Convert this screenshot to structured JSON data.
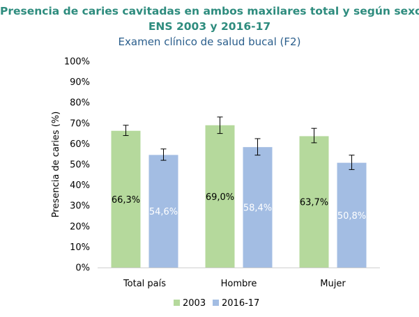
{
  "chart_data": {
    "type": "bar",
    "title": "Presencia de caries cavitadas en ambos maxilares total y según sexo",
    "subtitle": "ENS 2003 y 2016-17",
    "subtitle2": "Examen clínico de salud bucal (F2)",
    "xlabel": "",
    "ylabel": "Presencia de caries (%)",
    "ylim": [
      0,
      100
    ],
    "yticks": [
      "0%",
      "10%",
      "20%",
      "30%",
      "40%",
      "50%",
      "60%",
      "70%",
      "80%",
      "90%",
      "100%"
    ],
    "categories": [
      "Total país",
      "Hombre",
      "Mujer"
    ],
    "series": [
      {
        "name": "2003",
        "color": "#b5d99c",
        "label_color": "#000000",
        "values": [
          66.3,
          69.0,
          63.7
        ],
        "labels": [
          "66,3%",
          "69,0%",
          "63,7%"
        ],
        "err_low": [
          64.0,
          65.0,
          60.5
        ],
        "err_high": [
          69.0,
          73.0,
          67.5
        ]
      },
      {
        "name": "2016-17",
        "color": "#a3bde3",
        "label_color": "#ffffff",
        "values": [
          54.6,
          58.4,
          50.8
        ],
        "labels": [
          "54,6%",
          "58,4%",
          "50,8%"
        ],
        "err_low": [
          52.0,
          54.5,
          47.5
        ],
        "err_high": [
          57.5,
          62.5,
          54.5
        ]
      }
    ],
    "legend": "bottom-center",
    "grid": false
  }
}
